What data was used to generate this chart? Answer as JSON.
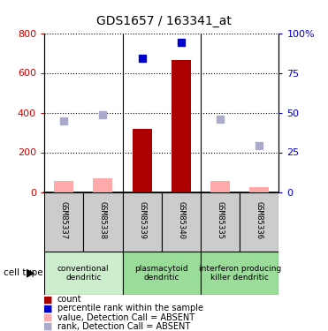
{
  "title": "GDS1657 / 163341_at",
  "samples": [
    "GSM85337",
    "GSM85338",
    "GSM85339",
    "GSM85340",
    "GSM85335",
    "GSM85336"
  ],
  "bar_values": [
    55,
    70,
    320,
    665,
    55,
    25
  ],
  "rank_values": [
    360,
    390,
    675,
    755,
    365,
    235
  ],
  "bar_absent": [
    true,
    true,
    false,
    false,
    true,
    true
  ],
  "rank_absent": [
    true,
    true,
    false,
    false,
    true,
    true
  ],
  "color_bar_present": "#aa0000",
  "color_bar_absent": "#ffaaaa",
  "color_rank_present": "#0000cc",
  "color_rank_absent": "#aaaacc",
  "ylim_left": [
    0,
    800
  ],
  "ylim_right": [
    0,
    100
  ],
  "yticks_left": [
    0,
    200,
    400,
    600,
    800
  ],
  "yticks_right": [
    0,
    25,
    50,
    75,
    100
  ],
  "ytick_labels_right": [
    "0",
    "25",
    "50",
    "75",
    "100%"
  ],
  "group_defs": [
    {
      "start": 0,
      "end": 2,
      "label": "conventional\ndendritic",
      "color": "#cceecc"
    },
    {
      "start": 2,
      "end": 4,
      "label": "plasmacytoid\ndendritic",
      "color": "#99dd99"
    },
    {
      "start": 4,
      "end": 6,
      "label": "interferon producing\nkiller dendritic",
      "color": "#99dd99"
    }
  ],
  "legend_items": [
    {
      "label": "count",
      "color": "#aa0000"
    },
    {
      "label": "percentile rank within the sample",
      "color": "#0000cc"
    },
    {
      "label": "value, Detection Call = ABSENT",
      "color": "#ffaaaa"
    },
    {
      "label": "rank, Detection Call = ABSENT",
      "color": "#aaaacc"
    }
  ],
  "cell_type_label": "cell type",
  "background_color": "#ffffff",
  "sample_box_color": "#cccccc",
  "bar_width": 0.5
}
